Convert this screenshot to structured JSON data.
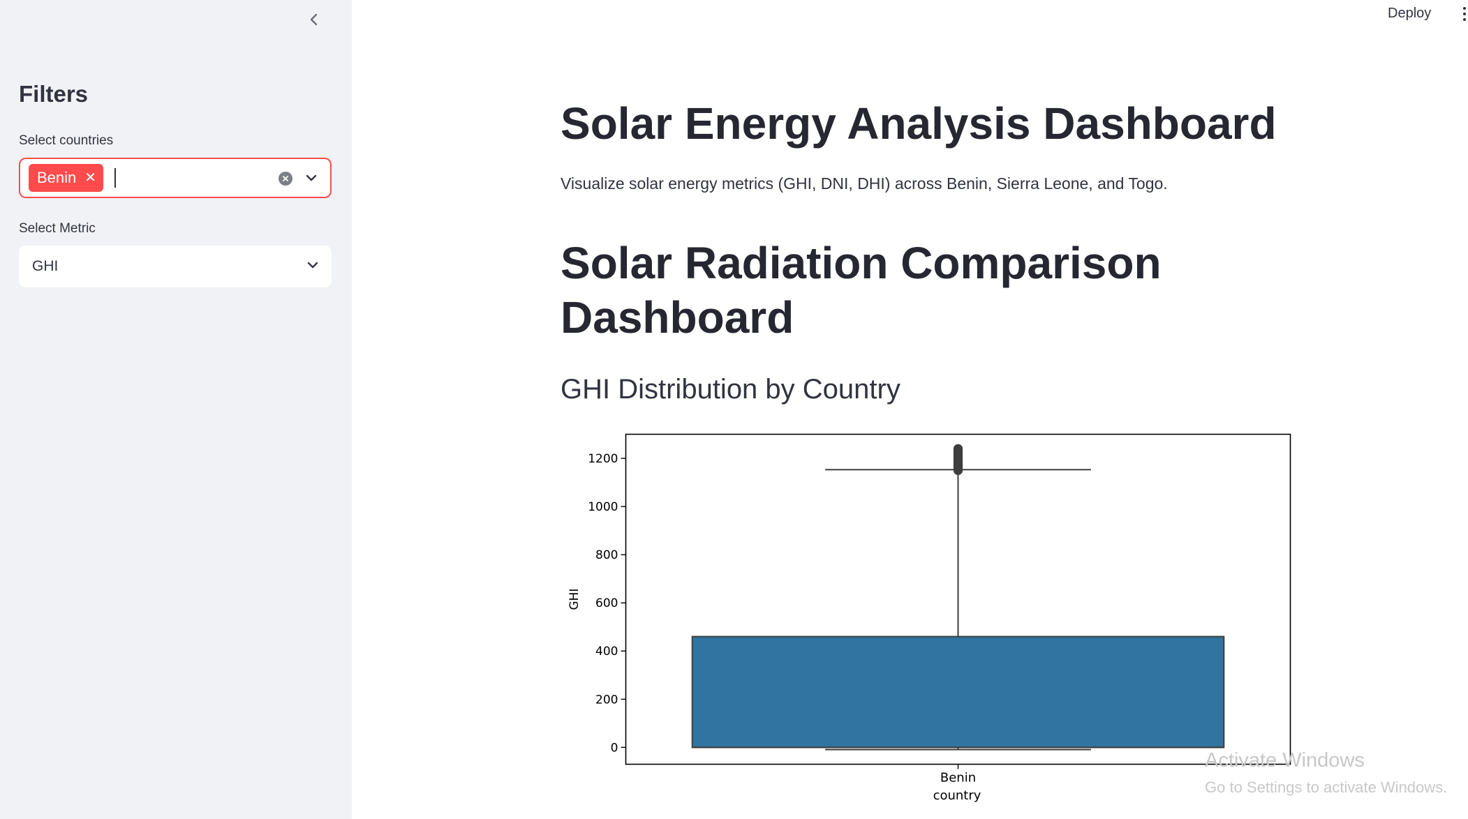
{
  "sidebar": {
    "collapse_icon": "chevron-left-icon",
    "filters_title": "Filters",
    "countries_label": "Select countries",
    "selected_countries": [
      "Benin"
    ],
    "metric_label": "Select Metric",
    "metric_value": "GHI"
  },
  "header": {
    "deploy_label": "Deploy",
    "menu_icon": "vertical-dots-icon"
  },
  "main": {
    "title": "Solar Energy Analysis Dashboard",
    "intro": "Visualize solar energy metrics (GHI, DNI, DHI) across Benin, Sierra Leone, and Togo.",
    "section_title": "Solar Radiation Comparison Dashboard",
    "chart_title": "GHI Distribution by Country"
  },
  "chart_data": {
    "type": "box",
    "xlabel": "country",
    "ylabel": "GHI",
    "categories": [
      "Benin"
    ],
    "ylim": [
      -70,
      1300
    ],
    "yticks": [
      0,
      200,
      400,
      600,
      800,
      1000,
      1200
    ],
    "boxes": [
      {
        "category": "Benin",
        "whisker_low": -9,
        "q1": 0,
        "median": 0,
        "q3": 460,
        "whisker_high": 1153,
        "outliers_low": 1150,
        "outliers_high": 1240,
        "color": "#3274a1"
      }
    ]
  },
  "watermark": {
    "line1": "Activate Windows",
    "line2": "Go to Settings to activate Windows."
  }
}
